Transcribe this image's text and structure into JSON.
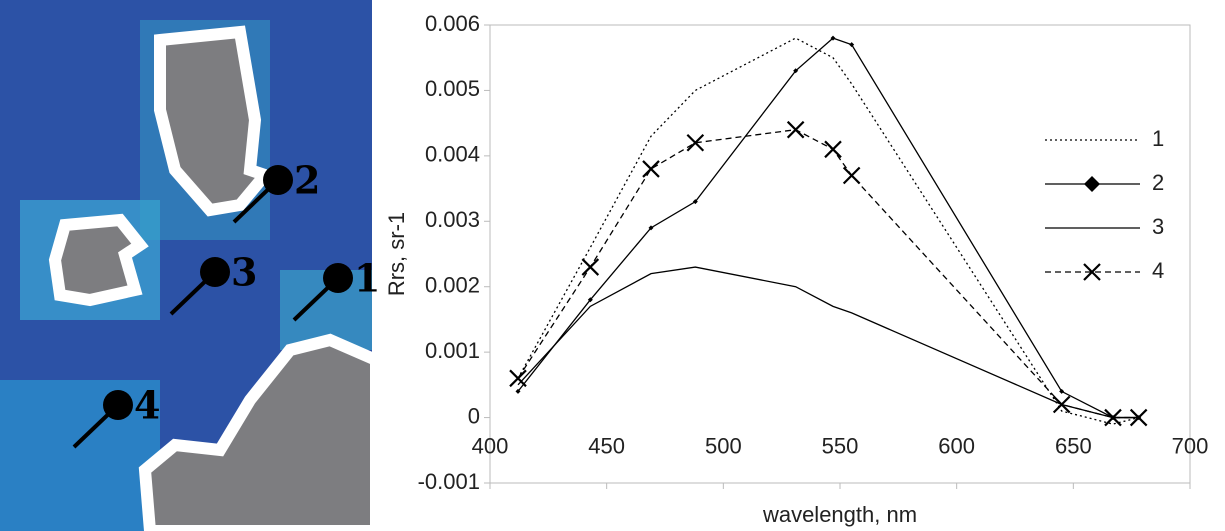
{
  "chart_data": {
    "type": "line",
    "x_label": "wavelength, nm",
    "y_label": "Rrs, sr-1",
    "x": [
      412,
      443,
      469,
      488,
      531,
      547,
      555,
      645,
      667,
      678
    ],
    "series": [
      {
        "name": "1",
        "color": "#000000",
        "style": "dotted",
        "marker": "none",
        "values": [
          0.0006,
          0.0026,
          0.0043,
          0.005,
          0.0058,
          0.0055,
          0.0051,
          0.0001,
          -0.0001,
          0
        ]
      },
      {
        "name": "2",
        "color": "#000000",
        "style": "solid",
        "marker": "diamond",
        "values": [
          0.0004,
          0.0018,
          0.0029,
          0.0033,
          0.0053,
          0.0058,
          0.0057,
          0.0004,
          0,
          0
        ]
      },
      {
        "name": "3",
        "color": "#000000",
        "style": "solid",
        "marker": "none",
        "values": [
          0.0005,
          0.0017,
          0.0022,
          0.0023,
          0.002,
          0.0017,
          0.0016,
          0.0002,
          0,
          0
        ]
      },
      {
        "name": "4",
        "color": "#000000",
        "style": "dashed",
        "marker": "x",
        "values": [
          0.0006,
          0.0023,
          0.0038,
          0.0042,
          0.0044,
          0.0041,
          0.0037,
          0.0002,
          0,
          0
        ]
      }
    ],
    "xlim": [
      400,
      700
    ],
    "xticks": [
      400,
      450,
      500,
      550,
      600,
      650,
      700
    ],
    "ylim": [
      -0.001,
      0.006
    ],
    "yticks": [
      -0.001,
      0,
      0.001,
      0.002,
      0.003,
      0.004,
      0.005,
      0.006
    ],
    "grid": false,
    "legend": "right"
  },
  "map": {
    "markers": [
      "1",
      "2",
      "3",
      "4"
    ]
  }
}
